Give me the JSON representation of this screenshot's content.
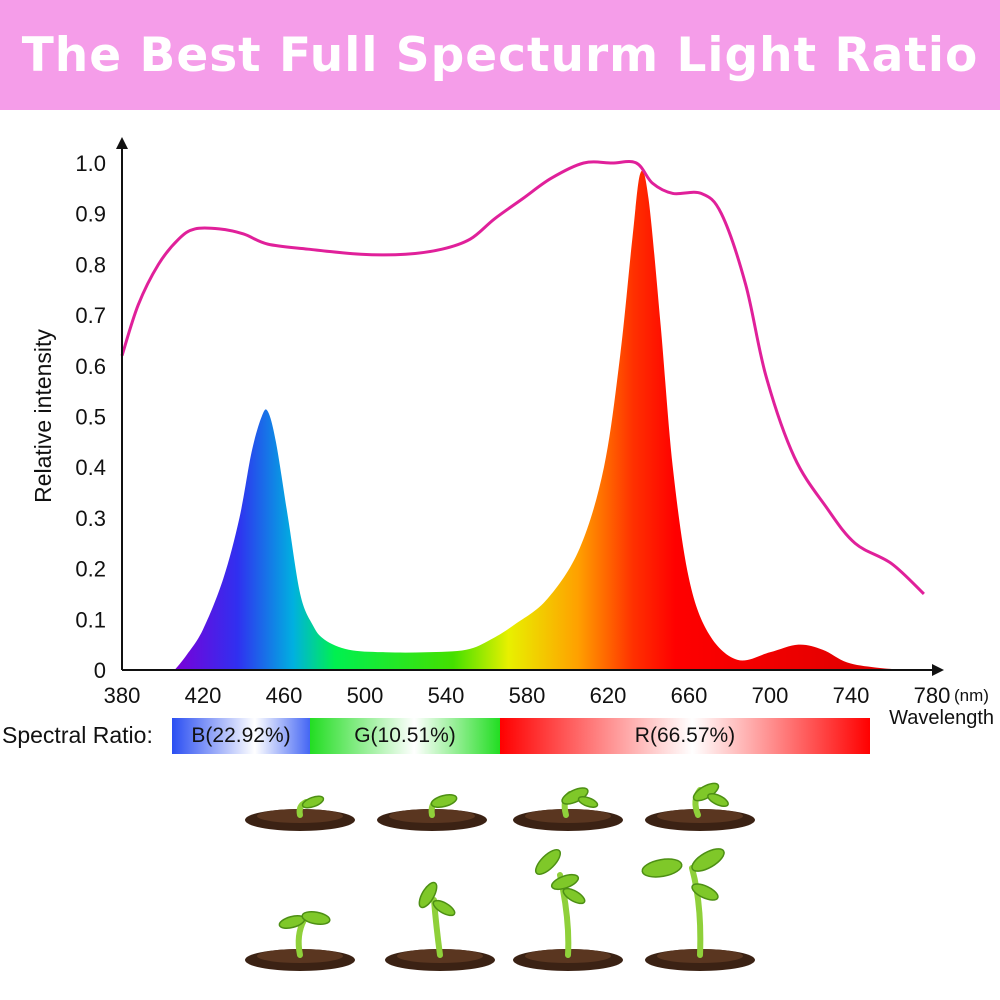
{
  "title": "The Best Full Specturm Light Ratio",
  "spectral_ratio": {
    "label": "Spectral Ratio:",
    "blue": "B(22.92%)",
    "green": "G(10.51%)",
    "red": "R(66.57%)"
  },
  "colors": {
    "banner": "#f59de9",
    "curve": "#e0209a",
    "red": "#ff0000",
    "green": "#22dd22",
    "blue": "#2255ee"
  },
  "chart_data": {
    "type": "line",
    "xlabel": "Wavelength",
    "x_unit": "(nm)",
    "ylabel": "Relative intensity",
    "xlim": [
      380,
      780
    ],
    "ylim": [
      0,
      1.0
    ],
    "x_ticks": [
      "380",
      "420",
      "460",
      "500",
      "540",
      "580",
      "620",
      "660",
      "700",
      "740",
      "780"
    ],
    "y_ticks": [
      "0",
      "0.1",
      "0.2",
      "0.3",
      "0.4",
      "0.5",
      "0.6",
      "0.7",
      "0.8",
      "0.9",
      "1.0"
    ],
    "grid": false,
    "series": [
      {
        "style": "line",
        "x": [
          380,
          388,
          398,
          408,
          416,
          428,
          440,
          452,
          472,
          498,
          520,
          538,
          552,
          564,
          578,
          592,
          608,
          622,
          634,
          642,
          652,
          666,
          676,
          688,
          698,
          712,
          728,
          742,
          760,
          776
        ],
        "y": [
          0.62,
          0.72,
          0.8,
          0.85,
          0.87,
          0.87,
          0.86,
          0.84,
          0.83,
          0.82,
          0.82,
          0.83,
          0.85,
          0.89,
          0.93,
          0.97,
          1.0,
          1.0,
          1.0,
          0.96,
          0.94,
          0.94,
          0.9,
          0.76,
          0.58,
          0.42,
          0.32,
          0.25,
          0.21,
          0.15
        ]
      },
      {
        "style": "filled spectrum",
        "x": [
          406,
          412,
          420,
          430,
          438,
          444,
          449,
          452,
          456,
          462,
          468,
          474,
          480,
          492,
          510,
          530,
          550,
          562,
          574,
          590,
          606,
          618,
          626,
          632,
          636,
          640,
          646,
          652,
          660,
          670,
          684,
          700,
          714,
          726,
          738,
          752,
          768,
          776
        ],
        "y": [
          0.0,
          0.03,
          0.08,
          0.18,
          0.3,
          0.43,
          0.5,
          0.51,
          0.45,
          0.3,
          0.15,
          0.09,
          0.06,
          0.04,
          0.035,
          0.035,
          0.04,
          0.06,
          0.09,
          0.14,
          0.24,
          0.4,
          0.62,
          0.85,
          0.98,
          0.93,
          0.68,
          0.4,
          0.18,
          0.07,
          0.02,
          0.035,
          0.05,
          0.04,
          0.015,
          0.005,
          0.0,
          0.0
        ]
      }
    ]
  }
}
